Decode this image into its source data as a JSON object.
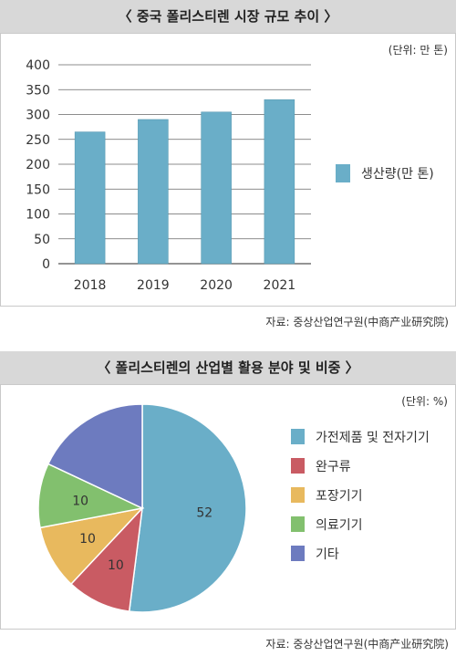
{
  "chart_data": [
    {
      "type": "bar",
      "title": "〈 중국 폴리스티렌 시장 규모 추이 〉",
      "unit_label": "(단위: 만 톤)",
      "categories": [
        "2018",
        "2019",
        "2020",
        "2021"
      ],
      "series": [
        {
          "name": "생산량(만 톤)",
          "values": [
            265,
            290,
            305,
            330
          ],
          "color": "#6aaec8"
        }
      ],
      "yticks": [
        "400",
        "350",
        "300",
        "250",
        "200",
        "150",
        "100",
        "50",
        "0"
      ],
      "ylim": [
        0,
        400
      ],
      "grid": true,
      "legend": "right",
      "source": "자료: 중상산업연구원(中商产业研究院)"
    },
    {
      "type": "pie",
      "title": "〈 폴리스티렌의 산업별 활용 분야 및 비중 〉",
      "unit_label": "(단위: %)",
      "slices": [
        {
          "label": "가전제품 및 전자기기",
          "value": 52,
          "value_label": "52",
          "color": "#6aaec8"
        },
        {
          "label": "완구류",
          "value": 10,
          "value_label": "10",
          "color": "#c95b63"
        },
        {
          "label": "포장기기",
          "value": 10,
          "value_label": "10",
          "color": "#e8b95e"
        },
        {
          "label": "의료기기",
          "value": 10,
          "value_label": "10",
          "color": "#82c06e"
        },
        {
          "label": "기타",
          "value": 18,
          "value_label": "",
          "color": "#6d7bbf"
        }
      ],
      "legend": "right",
      "source": "자료: 중상산업연구원(中商产业研究院)"
    }
  ]
}
